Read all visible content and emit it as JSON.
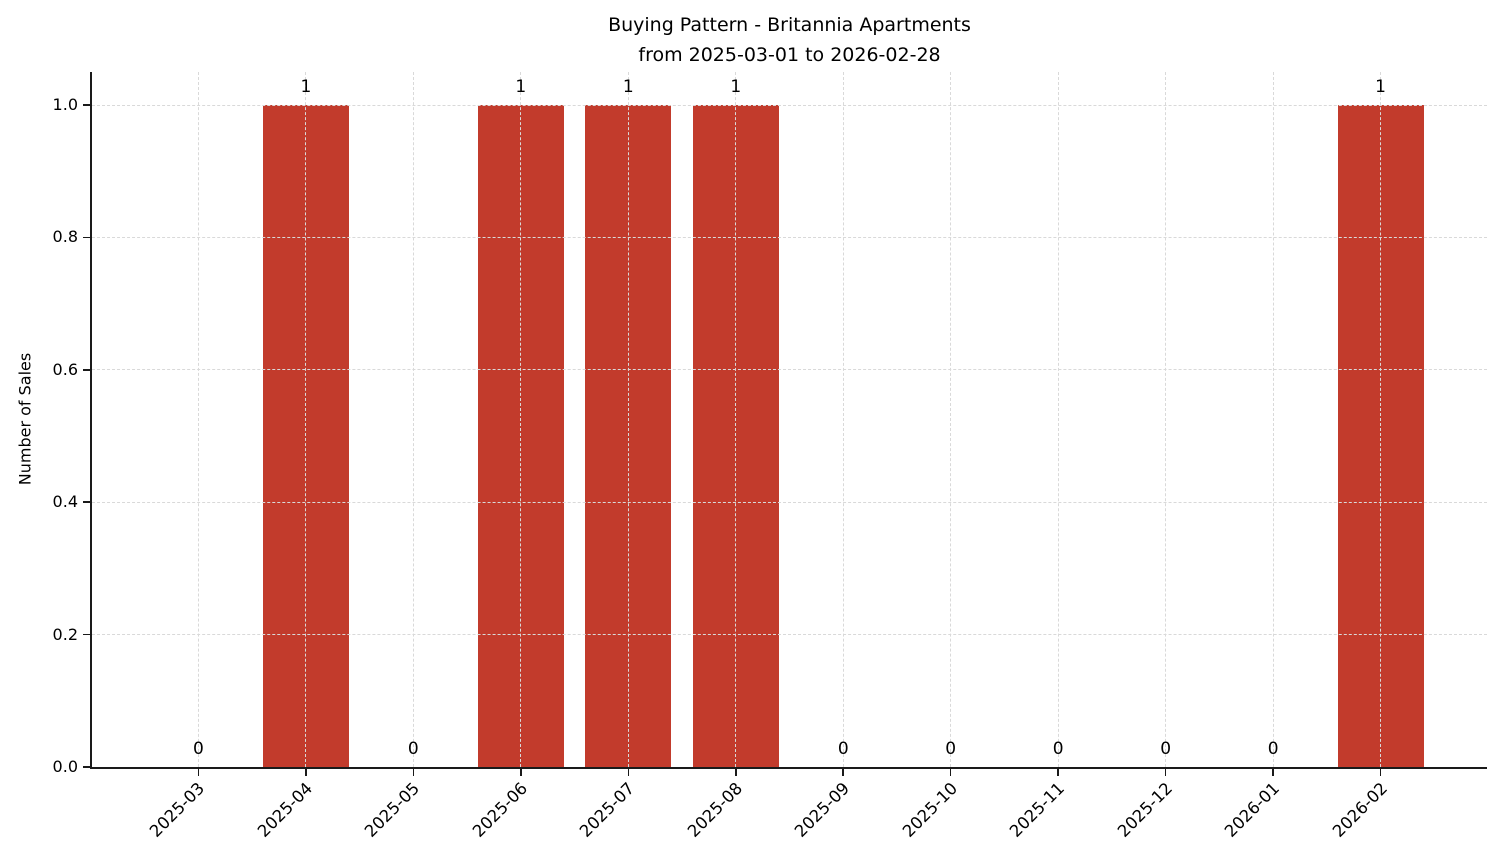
{
  "chart_data": {
    "type": "bar",
    "title": "Buying Pattern - Britannia Apartments\nfrom 2025-03-01 to 2026-02-28",
    "title_lines": [
      "Buying Pattern - Britannia Apartments",
      "from 2025-03-01 to 2026-02-28"
    ],
    "xlabel": "",
    "ylabel": "Number of Sales",
    "categories": [
      "2025-03",
      "2025-04",
      "2025-05",
      "2025-06",
      "2025-07",
      "2025-08",
      "2025-09",
      "2025-10",
      "2025-11",
      "2025-12",
      "2026-01",
      "2026-02"
    ],
    "values": [
      0,
      1,
      0,
      1,
      1,
      1,
      0,
      0,
      0,
      0,
      0,
      1
    ],
    "bar_value_labels": [
      "0",
      "1",
      "0",
      "1",
      "1",
      "1",
      "0",
      "0",
      "0",
      "0",
      "0",
      "1"
    ],
    "ytick_labels": [
      "0.0",
      "0.2",
      "0.4",
      "0.6",
      "0.8",
      "1.0"
    ],
    "ytick_values": [
      0,
      0.2,
      0.4,
      0.6,
      0.8,
      1.0
    ],
    "ylim": [
      0,
      1.05
    ],
    "grid": true,
    "grid_line_style": "dashed",
    "grid_above_bars": true,
    "legend_position": "none",
    "x_tick_rotation_deg": 45,
    "bar_width_fraction": 0.8,
    "colors": {
      "bar": "#c23b2c",
      "grid": "#d9d9d9",
      "axis": "#1a1a1a",
      "text": "#000000",
      "background": "#ffffff"
    }
  }
}
